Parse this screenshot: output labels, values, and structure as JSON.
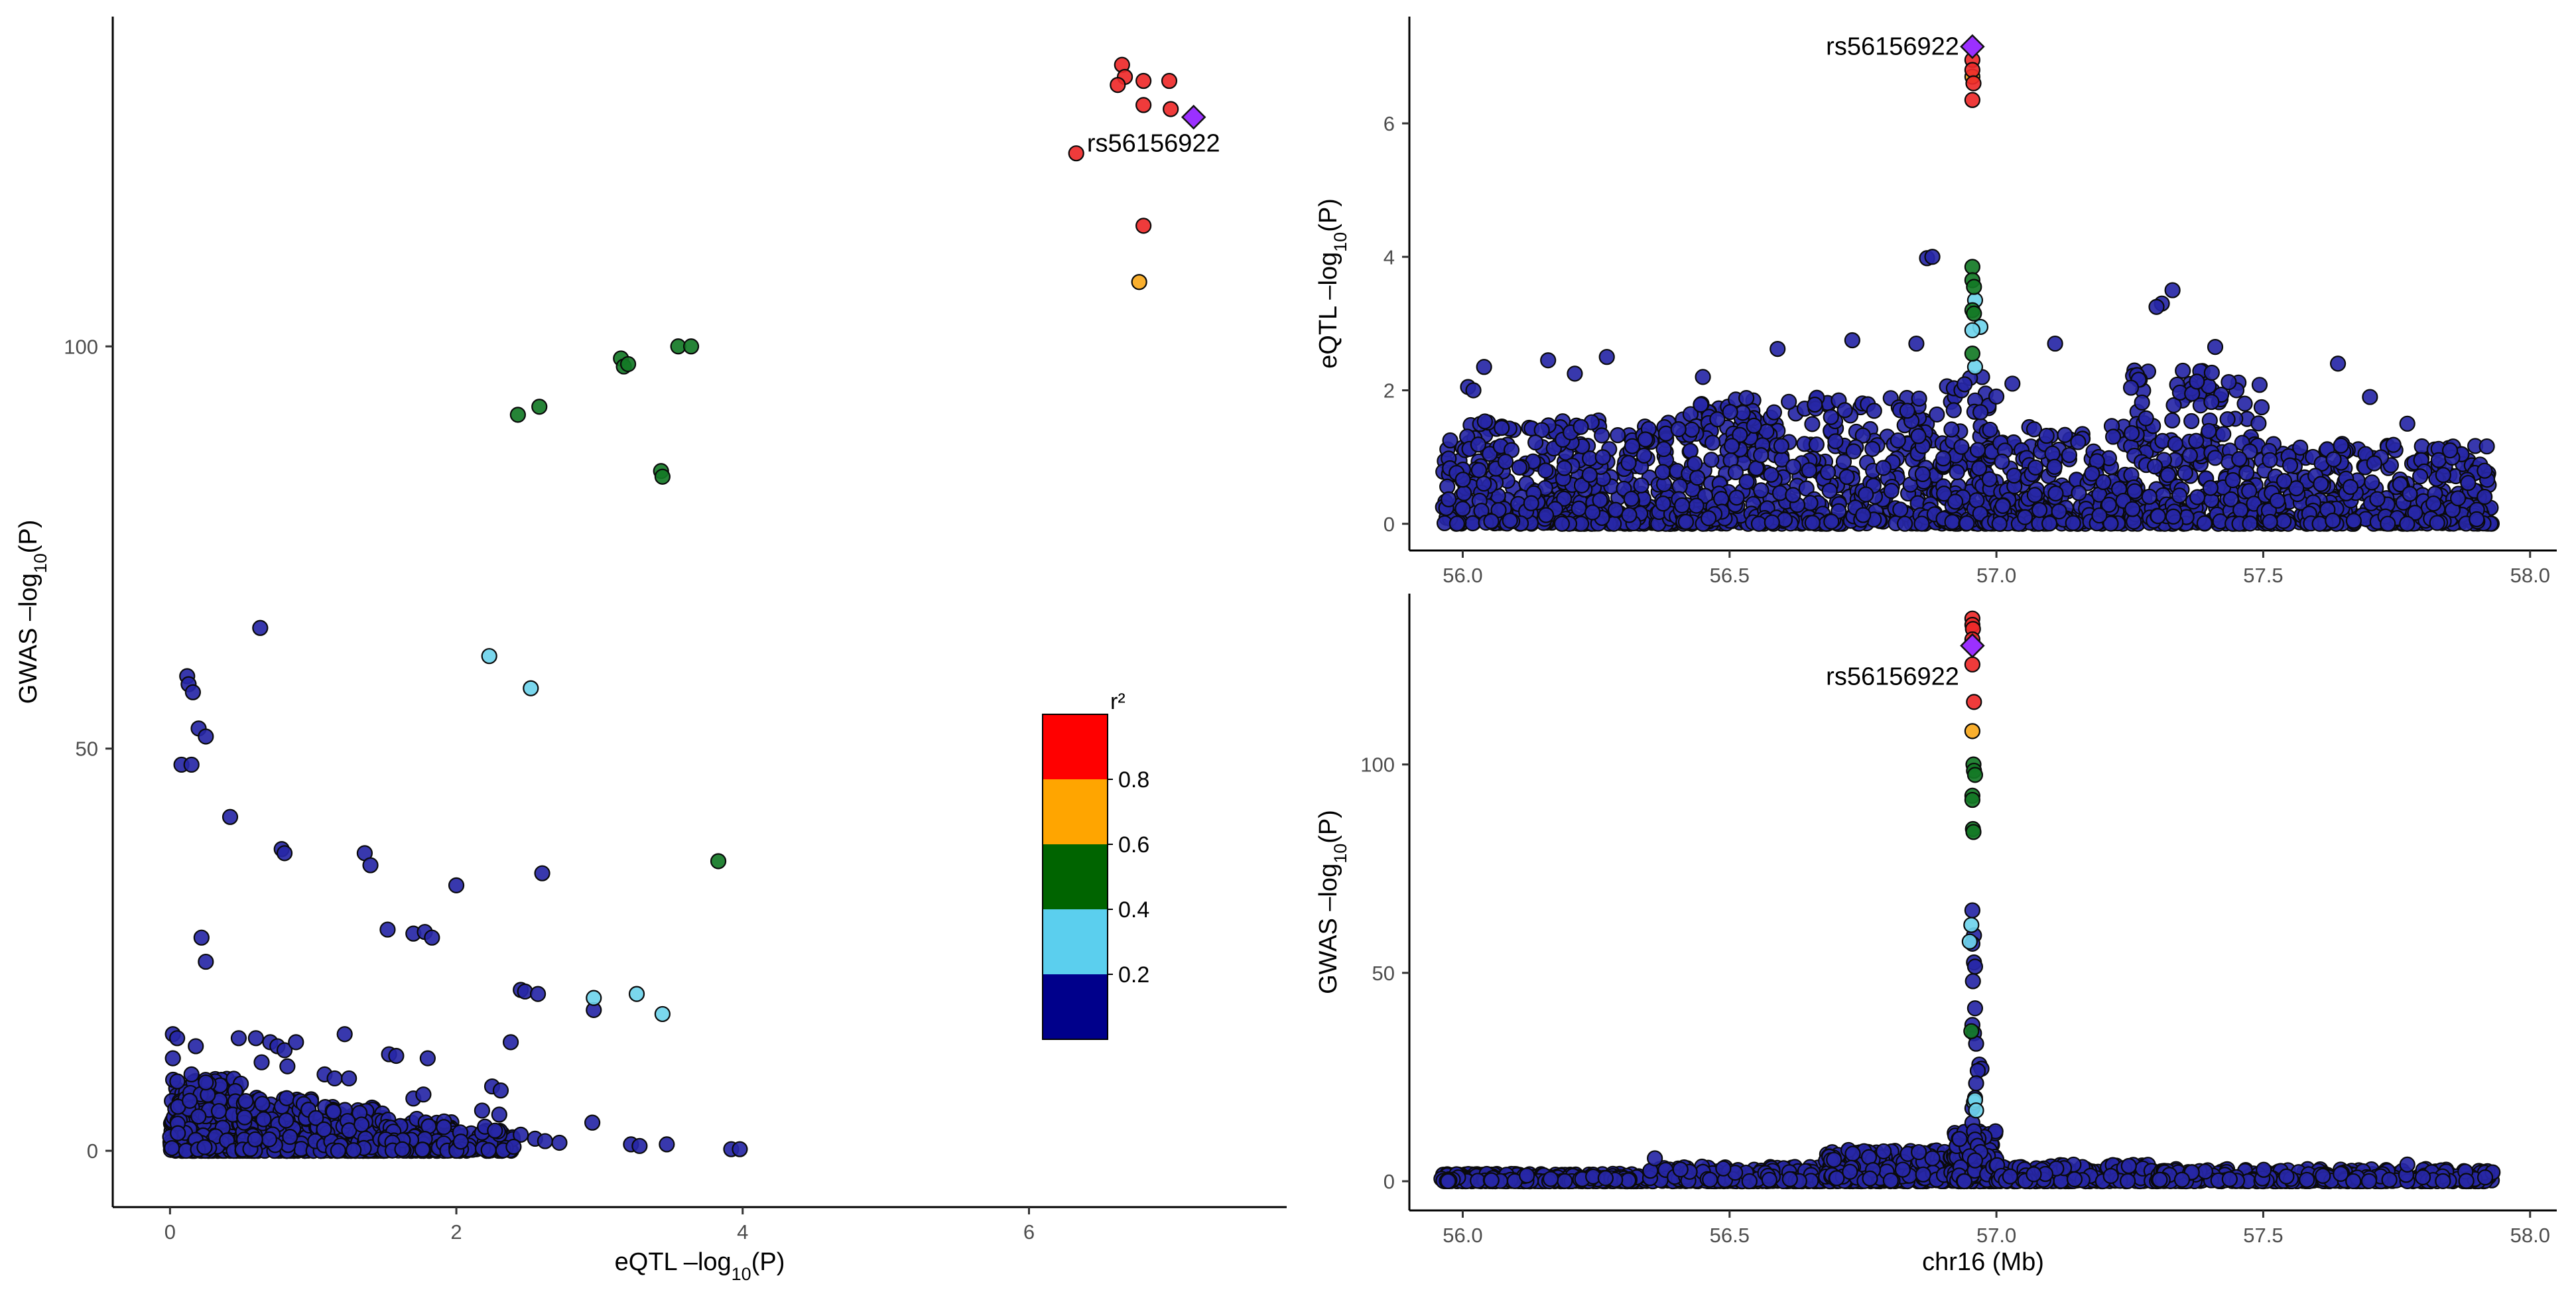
{
  "chart_data": [
    {
      "id": "scatter",
      "type": "scatter",
      "title": "",
      "xlabel": "eQTL –log10(P)",
      "ylabel": "GWAS –log10(P)",
      "xlim": [
        -0.4,
        7.8
      ],
      "ylim": [
        -7,
        141
      ],
      "xticks": [
        0,
        2,
        4,
        6
      ],
      "yticks": [
        0,
        50,
        100
      ],
      "label": {
        "text": "rs56156922",
        "x": 7.1,
        "y": 128.5
      },
      "lead": {
        "x": 7.15,
        "y": 128.5
      },
      "points": [
        {
          "x": 6.65,
          "y": 135,
          "c": "red"
        },
        {
          "x": 6.67,
          "y": 133.5,
          "c": "red"
        },
        {
          "x": 6.62,
          "y": 132.5,
          "c": "red"
        },
        {
          "x": 6.8,
          "y": 133,
          "c": "red"
        },
        {
          "x": 6.98,
          "y": 133,
          "c": "red"
        },
        {
          "x": 6.8,
          "y": 130,
          "c": "red"
        },
        {
          "x": 6.99,
          "y": 129.5,
          "c": "red"
        },
        {
          "x": 6.33,
          "y": 124,
          "c": "red"
        },
        {
          "x": 6.8,
          "y": 115,
          "c": "red"
        },
        {
          "x": 6.77,
          "y": 108,
          "c": "orange"
        },
        {
          "x": 3.15,
          "y": 98.5,
          "c": "green"
        },
        {
          "x": 3.17,
          "y": 97.5,
          "c": "green"
        },
        {
          "x": 3.2,
          "y": 97.8,
          "c": "green"
        },
        {
          "x": 3.55,
          "y": 100,
          "c": "green"
        },
        {
          "x": 3.64,
          "y": 100,
          "c": "green"
        },
        {
          "x": 2.43,
          "y": 91.5,
          "c": "green"
        },
        {
          "x": 2.58,
          "y": 92.5,
          "c": "green"
        },
        {
          "x": 3.43,
          "y": 84.5,
          "c": "green"
        },
        {
          "x": 3.44,
          "y": 83.8,
          "c": "green"
        },
        {
          "x": 3.83,
          "y": 36,
          "c": "green"
        },
        {
          "x": 2.23,
          "y": 61.5,
          "c": "cyan"
        },
        {
          "x": 2.52,
          "y": 57.5,
          "c": "cyan"
        },
        {
          "x": 2.96,
          "y": 19,
          "c": "cyan"
        },
        {
          "x": 3.26,
          "y": 19.5,
          "c": "cyan"
        },
        {
          "x": 3.44,
          "y": 17,
          "c": "cyan"
        },
        {
          "x": 0.63,
          "y": 65,
          "c": "blue"
        },
        {
          "x": 0.12,
          "y": 59,
          "c": "blue"
        },
        {
          "x": 0.13,
          "y": 58,
          "c": "blue"
        },
        {
          "x": 0.16,
          "y": 57,
          "c": "blue"
        },
        {
          "x": 0.2,
          "y": 52.5,
          "c": "blue"
        },
        {
          "x": 0.25,
          "y": 51.5,
          "c": "blue"
        },
        {
          "x": 0.08,
          "y": 48,
          "c": "blue"
        },
        {
          "x": 0.15,
          "y": 48,
          "c": "blue"
        },
        {
          "x": 0.42,
          "y": 41.5,
          "c": "blue"
        },
        {
          "x": 0.78,
          "y": 37.5,
          "c": "blue"
        },
        {
          "x": 0.8,
          "y": 37,
          "c": "blue"
        },
        {
          "x": 1.36,
          "y": 37,
          "c": "blue"
        },
        {
          "x": 1.4,
          "y": 35.5,
          "c": "blue"
        },
        {
          "x": 2.6,
          "y": 34.5,
          "c": "blue"
        },
        {
          "x": 2.0,
          "y": 33,
          "c": "blue"
        },
        {
          "x": 1.52,
          "y": 27.5,
          "c": "blue"
        },
        {
          "x": 1.7,
          "y": 27,
          "c": "blue"
        },
        {
          "x": 1.78,
          "y": 27.2,
          "c": "blue"
        },
        {
          "x": 1.83,
          "y": 26.5,
          "c": "blue"
        },
        {
          "x": 0.22,
          "y": 26.5,
          "c": "blue"
        },
        {
          "x": 0.25,
          "y": 23.5,
          "c": "blue"
        },
        {
          "x": 2.45,
          "y": 20,
          "c": "blue"
        },
        {
          "x": 2.48,
          "y": 19.8,
          "c": "blue"
        },
        {
          "x": 2.57,
          "y": 19.5,
          "c": "blue"
        },
        {
          "x": 2.96,
          "y": 17.5,
          "c": "blue"
        },
        {
          "x": 0.02,
          "y": 14.5,
          "c": "blue"
        },
        {
          "x": 0.05,
          "y": 14,
          "c": "blue"
        },
        {
          "x": 0.18,
          "y": 13,
          "c": "blue"
        },
        {
          "x": 0.48,
          "y": 14,
          "c": "blue"
        },
        {
          "x": 0.6,
          "y": 14,
          "c": "blue"
        },
        {
          "x": 0.7,
          "y": 13.5,
          "c": "blue"
        },
        {
          "x": 0.75,
          "y": 13,
          "c": "blue"
        },
        {
          "x": 0.8,
          "y": 12.5,
          "c": "blue"
        },
        {
          "x": 0.88,
          "y": 13.5,
          "c": "blue"
        },
        {
          "x": 1.22,
          "y": 14.5,
          "c": "blue"
        },
        {
          "x": 1.53,
          "y": 12,
          "c": "blue"
        },
        {
          "x": 1.58,
          "y": 11.8,
          "c": "blue"
        },
        {
          "x": 1.8,
          "y": 11.5,
          "c": "blue"
        },
        {
          "x": 2.38,
          "y": 13.5,
          "c": "blue"
        },
        {
          "x": 0.02,
          "y": 11.5,
          "c": "blue"
        },
        {
          "x": 0.64,
          "y": 11,
          "c": "blue"
        },
        {
          "x": 0.82,
          "y": 10.5,
          "c": "blue"
        },
        {
          "x": 1.08,
          "y": 9.5,
          "c": "blue"
        },
        {
          "x": 1.15,
          "y": 9,
          "c": "blue"
        },
        {
          "x": 1.25,
          "y": 9,
          "c": "blue"
        },
        {
          "x": 0.15,
          "y": 9.5,
          "c": "blue"
        },
        {
          "x": 0.25,
          "y": 8.5,
          "c": "blue"
        },
        {
          "x": 2.25,
          "y": 8,
          "c": "blue"
        },
        {
          "x": 2.31,
          "y": 7.5,
          "c": "blue"
        },
        {
          "x": 1.7,
          "y": 6.5,
          "c": "blue"
        },
        {
          "x": 1.77,
          "y": 7,
          "c": "blue"
        },
        {
          "x": 2.18,
          "y": 5,
          "c": "blue"
        },
        {
          "x": 2.3,
          "y": 4.5,
          "c": "blue"
        },
        {
          "x": 2.95,
          "y": 3.5,
          "c": "blue"
        },
        {
          "x": 2.2,
          "y": 3,
          "c": "blue"
        },
        {
          "x": 2.27,
          "y": 2.5,
          "c": "blue"
        },
        {
          "x": 2.45,
          "y": 2,
          "c": "blue"
        },
        {
          "x": 2.55,
          "y": 1.5,
          "c": "blue"
        },
        {
          "x": 2.62,
          "y": 1.2,
          "c": "blue"
        },
        {
          "x": 2.72,
          "y": 1,
          "c": "blue"
        },
        {
          "x": 3.22,
          "y": 0.8,
          "c": "blue"
        },
        {
          "x": 3.28,
          "y": 0.6,
          "c": "blue"
        },
        {
          "x": 3.47,
          "y": 0.8,
          "c": "blue"
        },
        {
          "x": 3.92,
          "y": 0.2,
          "c": "blue"
        },
        {
          "x": 3.98,
          "y": 0.2,
          "c": "blue"
        },
        {
          "x": 2.4,
          "y": 0.5,
          "c": "blue"
        }
      ],
      "dense": [
        {
          "x0": 0,
          "x1": 0.5,
          "ymax": 9,
          "n": 360
        },
        {
          "x0": 0.5,
          "x1": 1.0,
          "ymax": 7,
          "n": 280
        },
        {
          "x0": 1.0,
          "x1": 1.5,
          "ymax": 5.5,
          "n": 220
        },
        {
          "x0": 1.5,
          "x1": 2.0,
          "ymax": 4,
          "n": 150
        },
        {
          "x0": 2.0,
          "x1": 2.4,
          "ymax": 2.5,
          "n": 70
        }
      ],
      "legend": {
        "title": "r²",
        "labels": [
          "0.8",
          "0.6",
          "0.4",
          "0.2"
        ],
        "colors": [
          "red",
          "orange",
          "green",
          "cyan",
          "blue"
        ]
      }
    },
    {
      "id": "eqtl",
      "type": "scatter",
      "title": "",
      "xlabel": "",
      "ylabel": "eQTL –log10(P)",
      "xlim": [
        55.9,
        58.05
      ],
      "ylim": [
        -0.4,
        7.6
      ],
      "xticks": [
        56.0,
        56.5,
        57.0,
        57.5,
        58.0
      ],
      "yticks": [
        0,
        2,
        4,
        6
      ],
      "label": {
        "text": "rs56156922",
        "x": 56.955,
        "y": 7.15
      },
      "lead": {
        "x": 56.955,
        "y": 7.15
      },
      "points": [
        {
          "x": 56.955,
          "y": 6.95,
          "c": "red"
        },
        {
          "x": 56.955,
          "y": 6.8,
          "c": "red"
        },
        {
          "x": 56.955,
          "y": 6.7,
          "c": "orange"
        },
        {
          "x": 56.957,
          "y": 6.6,
          "c": "red"
        },
        {
          "x": 56.955,
          "y": 6.35,
          "c": "red"
        },
        {
          "x": 56.955,
          "y": 3.85,
          "c": "green"
        },
        {
          "x": 56.955,
          "y": 3.65,
          "c": "green"
        },
        {
          "x": 56.958,
          "y": 3.55,
          "c": "green"
        },
        {
          "x": 56.96,
          "y": 3.35,
          "c": "cyan"
        },
        {
          "x": 56.955,
          "y": 3.2,
          "c": "green"
        },
        {
          "x": 56.958,
          "y": 3.15,
          "c": "green"
        },
        {
          "x": 56.97,
          "y": 2.95,
          "c": "cyan"
        },
        {
          "x": 56.955,
          "y": 2.9,
          "c": "cyan"
        },
        {
          "x": 56.955,
          "y": 2.55,
          "c": "green"
        },
        {
          "x": 56.96,
          "y": 2.35,
          "c": "cyan"
        },
        {
          "x": 56.87,
          "y": 3.98,
          "c": "blue"
        },
        {
          "x": 56.88,
          "y": 4.0,
          "c": "blue"
        },
        {
          "x": 57.33,
          "y": 3.5,
          "c": "blue"
        },
        {
          "x": 57.31,
          "y": 3.3,
          "c": "blue"
        },
        {
          "x": 57.3,
          "y": 3.25,
          "c": "blue"
        },
        {
          "x": 56.73,
          "y": 2.75,
          "c": "blue"
        },
        {
          "x": 56.59,
          "y": 2.62,
          "c": "blue"
        },
        {
          "x": 56.85,
          "y": 2.7,
          "c": "blue"
        },
        {
          "x": 56.01,
          "y": 2.05,
          "c": "blue"
        },
        {
          "x": 56.02,
          "y": 2.0,
          "c": "blue"
        },
        {
          "x": 56.04,
          "y": 2.35,
          "c": "blue"
        },
        {
          "x": 56.16,
          "y": 2.45,
          "c": "blue"
        },
        {
          "x": 56.21,
          "y": 2.25,
          "c": "blue"
        },
        {
          "x": 56.27,
          "y": 2.5,
          "c": "blue"
        },
        {
          "x": 56.45,
          "y": 2.2,
          "c": "blue"
        },
        {
          "x": 57.41,
          "y": 2.65,
          "c": "blue"
        },
        {
          "x": 57.64,
          "y": 2.4,
          "c": "blue"
        },
        {
          "x": 57.7,
          "y": 1.9,
          "c": "blue"
        },
        {
          "x": 57.77,
          "y": 1.5,
          "c": "blue"
        },
        {
          "x": 57.85,
          "y": 1.1,
          "c": "blue"
        },
        {
          "x": 57.11,
          "y": 2.7,
          "c": "blue"
        },
        {
          "x": 57.03,
          "y": 2.1,
          "c": "blue"
        },
        {
          "x": 56.69,
          "y": 1.6,
          "c": "blue"
        }
      ],
      "dense": [
        {
          "x0": 55.96,
          "x1": 56.4,
          "ymax": 1.55,
          "n": 420
        },
        {
          "x0": 56.4,
          "x1": 56.9,
          "ymax": 1.9,
          "n": 480
        },
        {
          "x0": 56.9,
          "x1": 57.0,
          "ymax": 2.2,
          "n": 140
        },
        {
          "x0": 57.0,
          "x1": 57.25,
          "ymax": 1.5,
          "n": 220
        },
        {
          "x0": 57.25,
          "x1": 57.5,
          "ymax": 2.3,
          "n": 260
        },
        {
          "x0": 57.5,
          "x1": 57.93,
          "ymax": 1.2,
          "n": 380
        }
      ],
      "legend": null
    },
    {
      "id": "gwas",
      "type": "scatter",
      "title": "",
      "xlabel": "chr16 (Mb)",
      "ylabel": "GWAS –log10(P)",
      "xlim": [
        55.9,
        58.05
      ],
      "ylim": [
        -7,
        141
      ],
      "xticks": [
        56.0,
        56.5,
        57.0,
        57.5,
        58.0
      ],
      "yticks": [
        0,
        50,
        100
      ],
      "label": {
        "text": "rs56156922",
        "x": 56.955,
        "y": 121
      },
      "lead": {
        "x": 56.955,
        "y": 128.5
      },
      "points": [
        {
          "x": 56.955,
          "y": 135,
          "c": "red"
        },
        {
          "x": 56.955,
          "y": 133.5,
          "c": "red"
        },
        {
          "x": 56.956,
          "y": 132.5,
          "c": "red"
        },
        {
          "x": 56.955,
          "y": 130,
          "c": "red"
        },
        {
          "x": 56.955,
          "y": 124,
          "c": "red"
        },
        {
          "x": 56.958,
          "y": 115,
          "c": "red"
        },
        {
          "x": 56.955,
          "y": 108,
          "c": "orange"
        },
        {
          "x": 56.957,
          "y": 100,
          "c": "green"
        },
        {
          "x": 56.958,
          "y": 98.5,
          "c": "green"
        },
        {
          "x": 56.96,
          "y": 97.5,
          "c": "green"
        },
        {
          "x": 56.955,
          "y": 92.5,
          "c": "green"
        },
        {
          "x": 56.955,
          "y": 91.5,
          "c": "green"
        },
        {
          "x": 56.956,
          "y": 84.5,
          "c": "green"
        },
        {
          "x": 56.957,
          "y": 83.8,
          "c": "green"
        },
        {
          "x": 56.953,
          "y": 36,
          "c": "green"
        },
        {
          "x": 56.953,
          "y": 61.5,
          "c": "cyan"
        },
        {
          "x": 56.95,
          "y": 57.5,
          "c": "cyan"
        },
        {
          "x": 56.958,
          "y": 19,
          "c": "cyan"
        },
        {
          "x": 56.96,
          "y": 19.5,
          "c": "cyan"
        },
        {
          "x": 56.962,
          "y": 17,
          "c": "cyan"
        },
        {
          "x": 56.955,
          "y": 65,
          "c": "blue"
        },
        {
          "x": 56.958,
          "y": 59,
          "c": "blue"
        },
        {
          "x": 56.955,
          "y": 57,
          "c": "blue"
        },
        {
          "x": 56.958,
          "y": 52.5,
          "c": "blue"
        },
        {
          "x": 56.96,
          "y": 51.5,
          "c": "blue"
        },
        {
          "x": 56.956,
          "y": 48,
          "c": "blue"
        },
        {
          "x": 56.96,
          "y": 41.5,
          "c": "blue"
        },
        {
          "x": 56.955,
          "y": 37.5,
          "c": "blue"
        },
        {
          "x": 56.958,
          "y": 35.5,
          "c": "blue"
        },
        {
          "x": 56.962,
          "y": 33,
          "c": "blue"
        },
        {
          "x": 56.968,
          "y": 28,
          "c": "blue"
        },
        {
          "x": 56.972,
          "y": 27,
          "c": "blue"
        },
        {
          "x": 56.965,
          "y": 26.5,
          "c": "blue"
        },
        {
          "x": 56.962,
          "y": 23.5,
          "c": "blue"
        },
        {
          "x": 56.96,
          "y": 20,
          "c": "blue"
        },
        {
          "x": 56.955,
          "y": 17.5,
          "c": "blue"
        },
        {
          "x": 56.955,
          "y": 14,
          "c": "blue"
        },
        {
          "x": 56.958,
          "y": 12,
          "c": "blue"
        },
        {
          "x": 56.96,
          "y": 10,
          "c": "blue"
        },
        {
          "x": 56.965,
          "y": 8.5,
          "c": "blue"
        },
        {
          "x": 56.97,
          "y": 7,
          "c": "blue"
        },
        {
          "x": 56.95,
          "y": 6,
          "c": "blue"
        },
        {
          "x": 56.96,
          "y": 5,
          "c": "blue"
        },
        {
          "x": 56.88,
          "y": 5.5,
          "c": "blue"
        },
        {
          "x": 56.36,
          "y": 5.5,
          "c": "blue"
        },
        {
          "x": 57.77,
          "y": 4,
          "c": "blue"
        }
      ],
      "dense": [
        {
          "x0": 55.96,
          "x1": 56.35,
          "ymax": 1.8,
          "n": 360
        },
        {
          "x0": 56.35,
          "x1": 56.68,
          "ymax": 3.5,
          "n": 320
        },
        {
          "x0": 56.68,
          "x1": 56.92,
          "ymax": 7.5,
          "n": 360
        },
        {
          "x0": 56.92,
          "x1": 57.0,
          "ymax": 12,
          "n": 160
        },
        {
          "x0": 57.0,
          "x1": 57.3,
          "ymax": 4,
          "n": 260
        },
        {
          "x0": 57.3,
          "x1": 57.93,
          "ymax": 3,
          "n": 380
        }
      ],
      "legend": null
    }
  ]
}
